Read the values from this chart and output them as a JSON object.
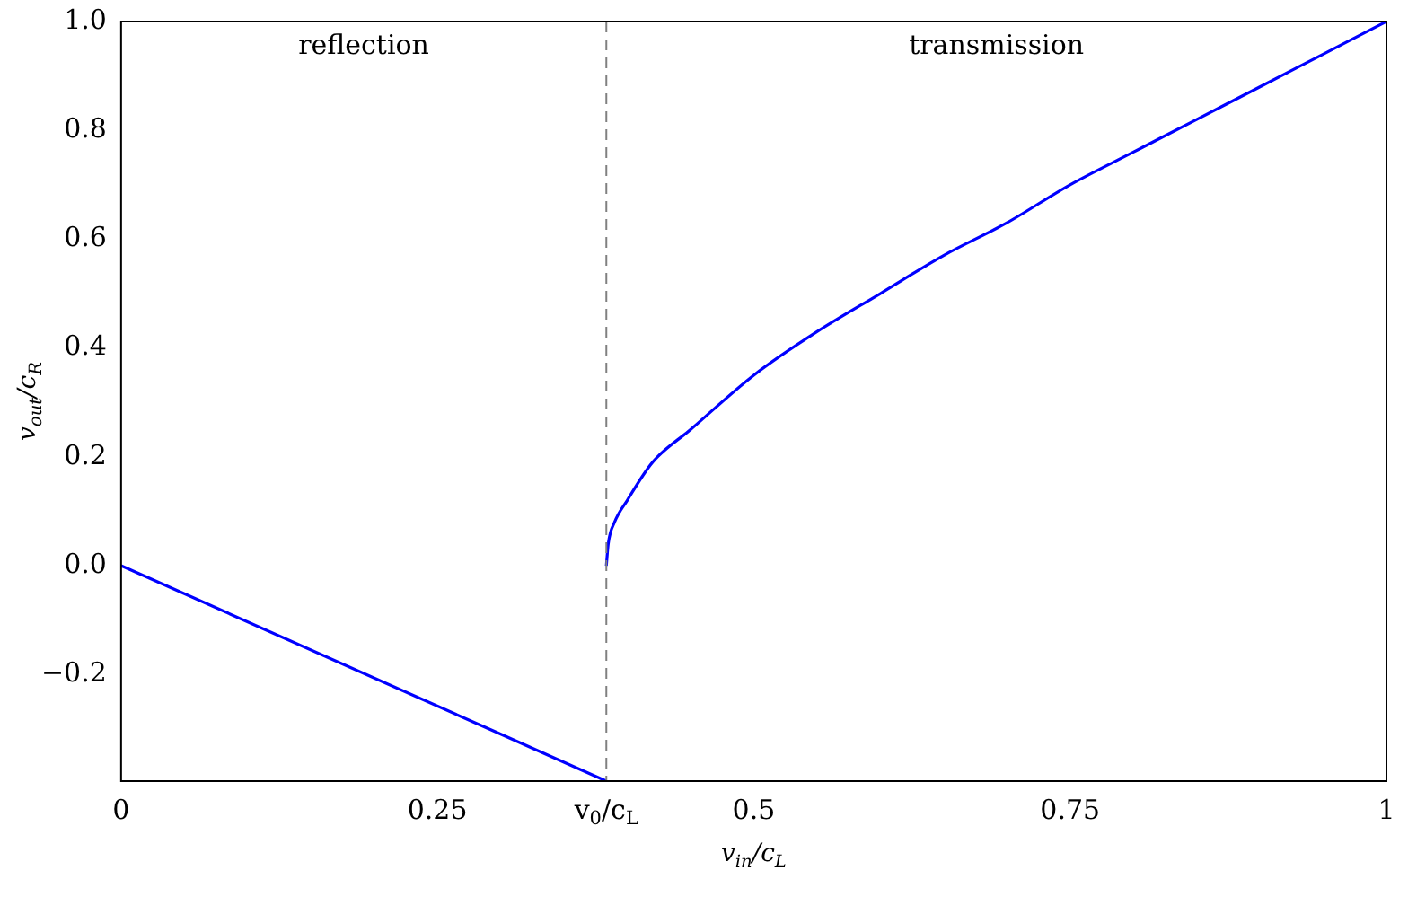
{
  "chart_data": {
    "type": "line",
    "xlabel": "v$_{in}$/c$_{L}$",
    "ylabel": "v$_{out}$/c$_{R}$",
    "xlim": [
      0,
      1
    ],
    "ylim": [
      -0.396,
      1.0
    ],
    "xticks": [
      0,
      0.25,
      {
        "value": 0.3835,
        "label": "v$_{0}$/c$_{L}$"
      },
      0.5,
      0.75,
      1
    ],
    "yticks": [
      -0.2,
      {
        "value": 0,
        "label": "0.0"
      },
      0.2,
      0.4,
      0.6,
      0.8,
      {
        "value": 1,
        "label": "1.0"
      }
    ],
    "series": [
      {
        "color": "#0000ff",
        "x": [
          0,
          0.3835
        ],
        "values": [
          0,
          -0.396
        ]
      },
      {
        "color": "#0000ff",
        "x": [
          0.3835,
          0.385,
          0.39,
          0.4,
          0.42,
          0.45,
          0.5,
          0.55,
          0.6,
          0.65,
          0.7,
          0.75,
          0.8,
          0.85,
          0.9,
          0.95,
          1
        ],
        "values": [
          0,
          0.04,
          0.08,
          0.12,
          0.19,
          0.25,
          0.35,
          0.43,
          0.5,
          0.57,
          0.63,
          0.7,
          0.76,
          0.82,
          0.88,
          0.94,
          1
        ]
      }
    ],
    "ref_lines": [
      {
        "axis": "x",
        "value": 0.3835,
        "color": "#808080",
        "line_style": "dashed"
      }
    ],
    "annotations": [
      "reflection",
      "transmission"
    ],
    "grid": false,
    "legend": false,
    "marker": "none",
    "line_style": "solid"
  }
}
